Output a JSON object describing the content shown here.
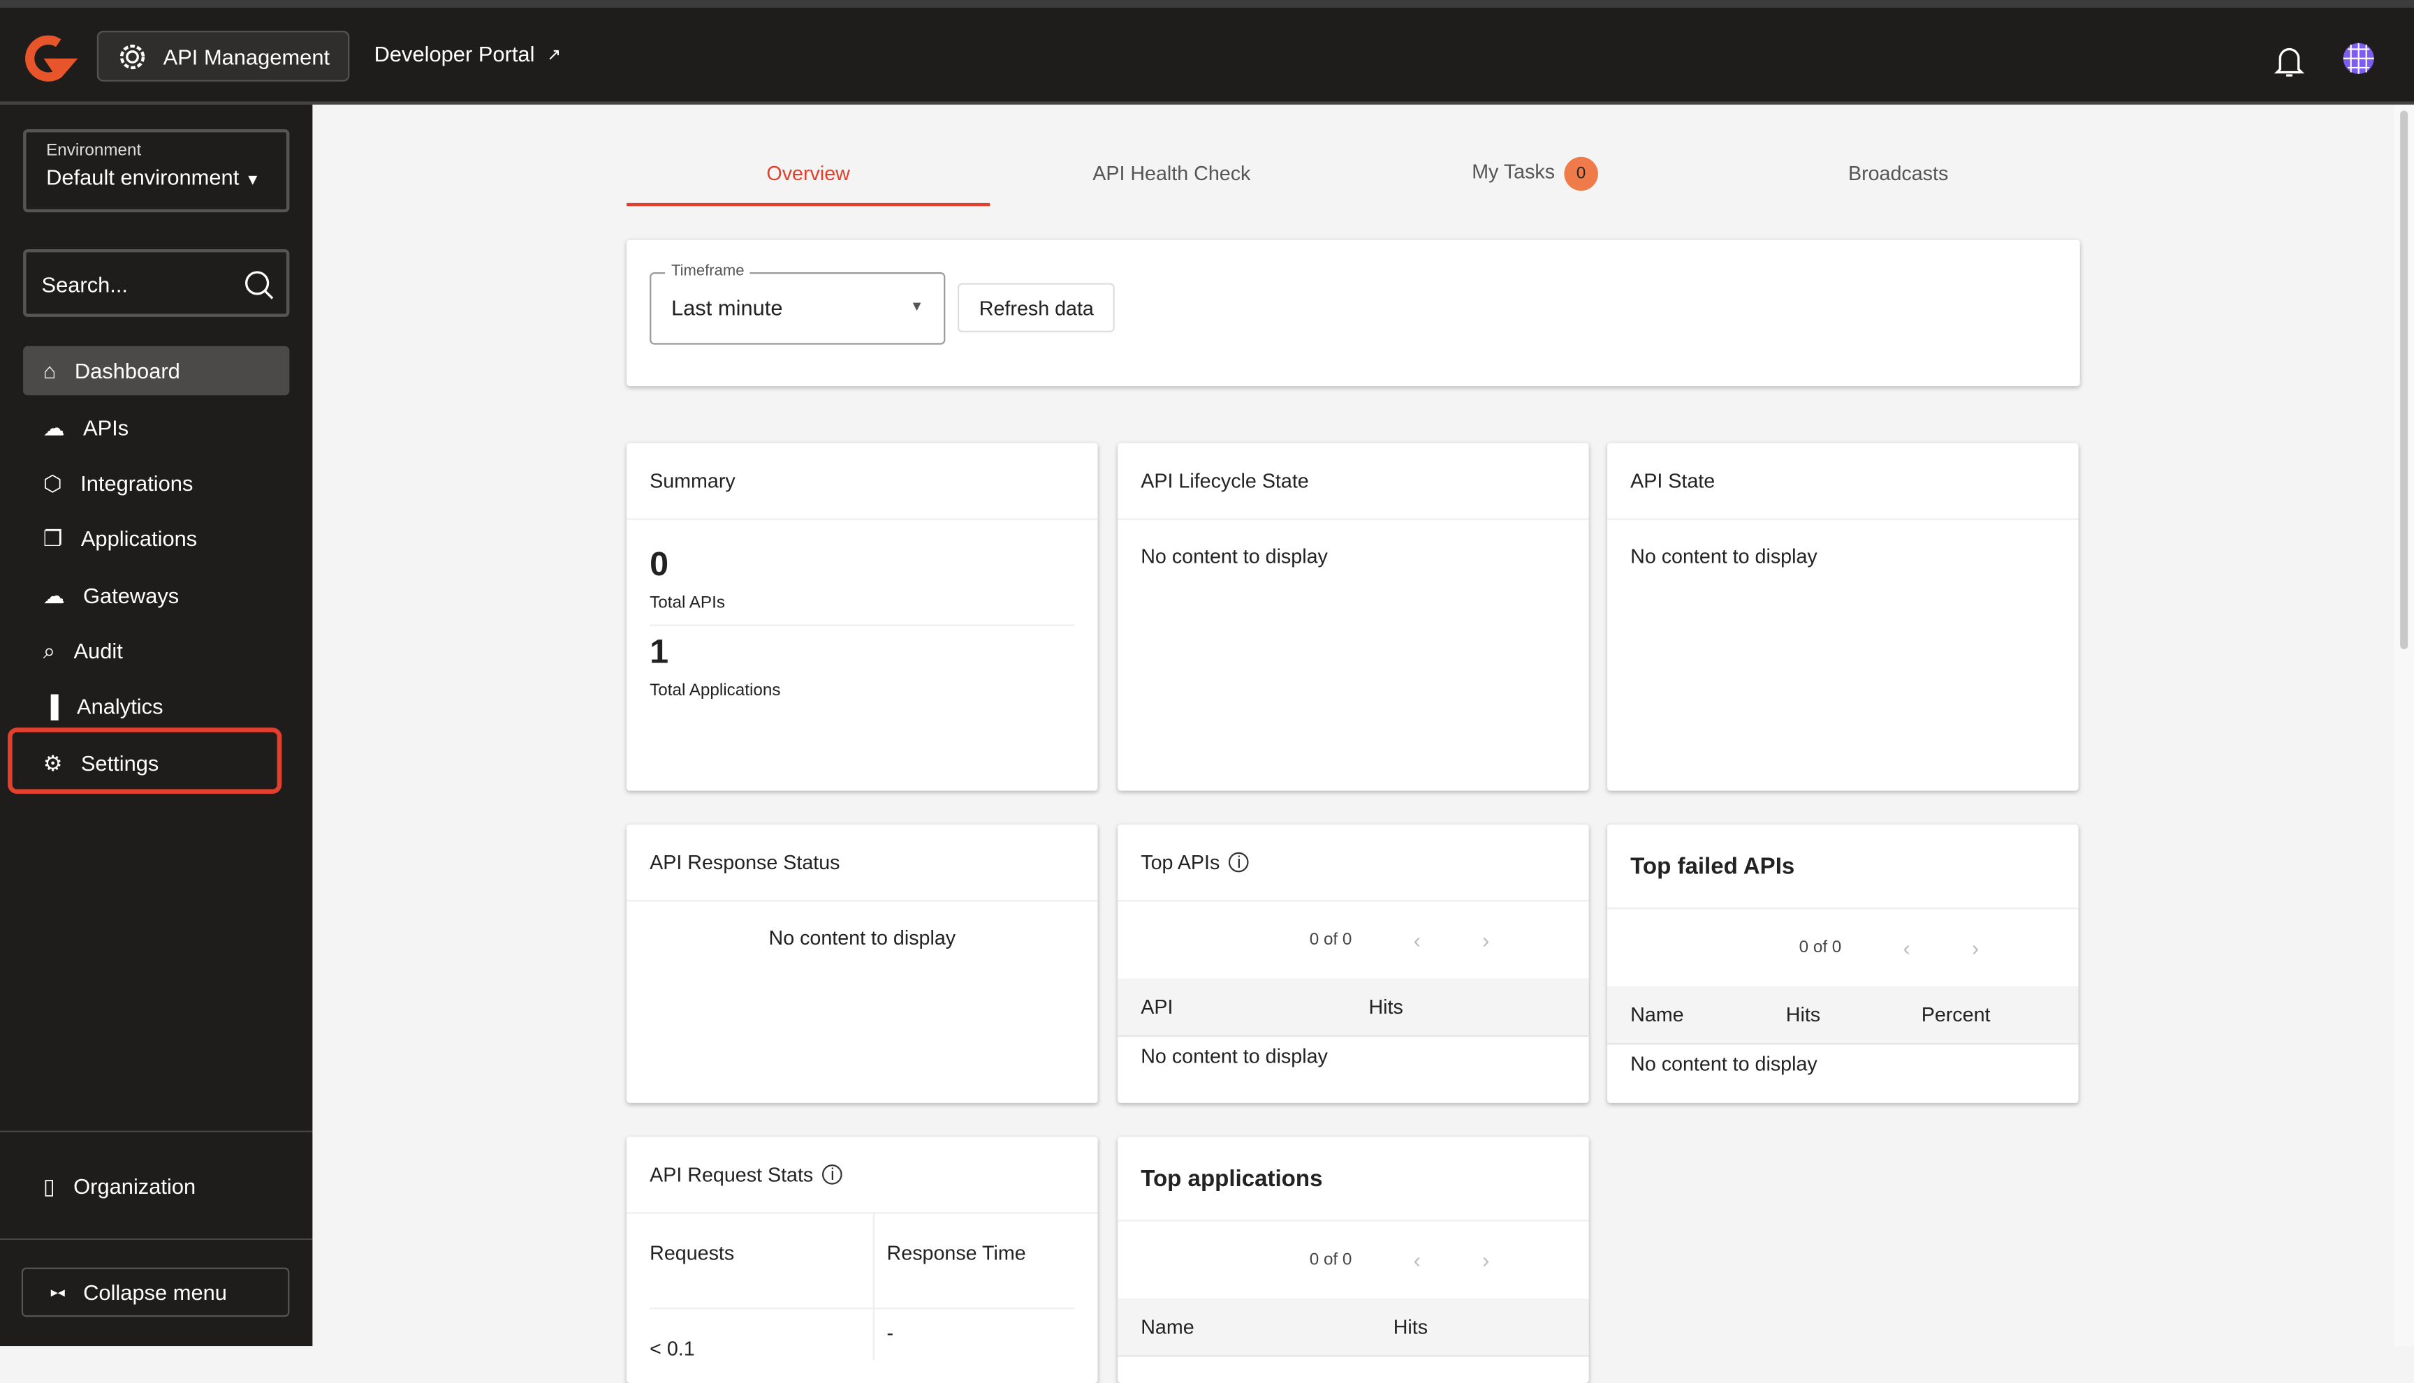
{
  "header": {
    "app_switch": "API Management",
    "developer_portal": "Developer Portal"
  },
  "sidebar": {
    "env_label": "Environment",
    "env_value": "Default environment",
    "search_placeholder": "Search...",
    "items": [
      {
        "label": "Dashboard"
      },
      {
        "label": "APIs"
      },
      {
        "label": "Integrations"
      },
      {
        "label": "Applications"
      },
      {
        "label": "Gateways"
      },
      {
        "label": "Audit"
      },
      {
        "label": "Analytics"
      },
      {
        "label": "Settings"
      }
    ],
    "organization": "Organization",
    "collapse": "Collapse menu"
  },
  "tabs": [
    {
      "label": "Overview"
    },
    {
      "label": "API Health Check"
    },
    {
      "label": "My Tasks",
      "badge": "0"
    },
    {
      "label": "Broadcasts"
    }
  ],
  "filters": {
    "timeframe_label": "Timeframe",
    "timeframe_value": "Last minute",
    "refresh": "Refresh data"
  },
  "summary": {
    "title": "Summary",
    "total_apis": "0",
    "total_apis_label": "Total APIs",
    "total_apps": "1",
    "total_apps_label": "Total Applications"
  },
  "lifecycle": {
    "title": "API Lifecycle State",
    "empty": "No content to display"
  },
  "state": {
    "title": "API State",
    "empty": "No content to display"
  },
  "response_status": {
    "title": "API Response Status",
    "empty": "No content to display"
  },
  "top_apis": {
    "title": "Top APIs",
    "pager": "0 of 0",
    "col_api": "API",
    "col_hits": "Hits",
    "empty": "No content to display"
  },
  "top_failed": {
    "title": "Top failed APIs",
    "pager": "0 of 0",
    "col_name": "Name",
    "col_hits": "Hits",
    "col_percent": "Percent",
    "empty": "No content to display"
  },
  "request_stats": {
    "title": "API Request Stats",
    "col_requests": "Requests",
    "col_response": "Response Time",
    "requests_value": "< 0.1",
    "response_value": "-"
  },
  "top_apps": {
    "title": "Top applications",
    "pager": "0 of 0",
    "col_name": "Name",
    "col_hits": "Hits"
  }
}
